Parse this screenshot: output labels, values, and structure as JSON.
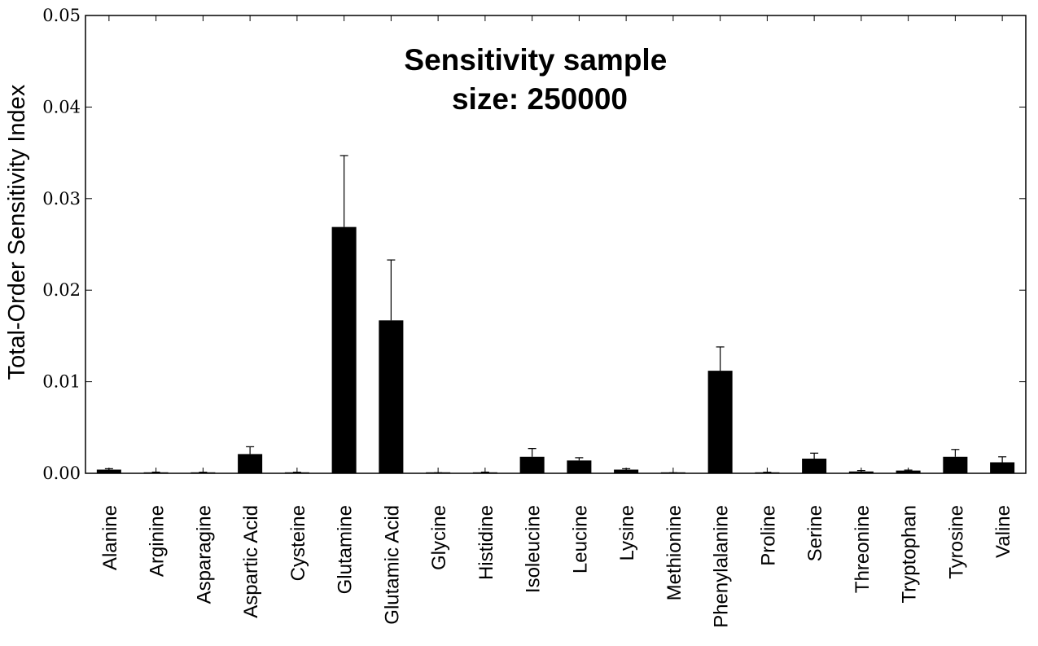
{
  "chart_data": {
    "type": "bar",
    "title_lines": [
      "Sensitivity sample",
      "size: 250000"
    ],
    "xlabel": "",
    "ylabel": "Total-Order Sensitivity Index",
    "ylim": [
      0,
      0.05
    ],
    "yticks": [
      "0.00",
      "0.01",
      "0.02",
      "0.03",
      "0.04",
      "0.05"
    ],
    "ytick_values": [
      0,
      0.01,
      0.02,
      0.03,
      0.04,
      0.05
    ],
    "grid": false,
    "bar_color": "#000000",
    "categories": [
      "Alanine",
      "Arginine",
      "Asparagine",
      "Aspartic Acid",
      "Cysteine",
      "Glutamine",
      "Glutamic Acid",
      "Glycine",
      "Histidine",
      "Isoleucine",
      "Leucine",
      "Lysine",
      "Methionine",
      "Phenylalanine",
      "Proline",
      "Serine",
      "Threonine",
      "Tryptophan",
      "Tyrosine",
      "Valine"
    ],
    "values": [
      0.0004,
      0.0001,
      0.0001,
      0.0021,
      0.0001,
      0.0269,
      0.0167,
      5e-05,
      0.0001,
      0.0018,
      0.0014,
      0.0004,
      5e-05,
      0.0112,
      0.0001,
      0.0016,
      0.0002,
      0.0003,
      0.0018,
      0.0012
    ],
    "errors": [
      0.0001,
      3e-05,
      2e-05,
      0.0008,
      2e-05,
      0.0078,
      0.0066,
      1e-05,
      3e-05,
      0.0009,
      0.0003,
      0.0001,
      1e-05,
      0.0026,
      2e-05,
      0.0006,
      0.0001,
      5e-05,
      0.0008,
      0.0006
    ]
  }
}
